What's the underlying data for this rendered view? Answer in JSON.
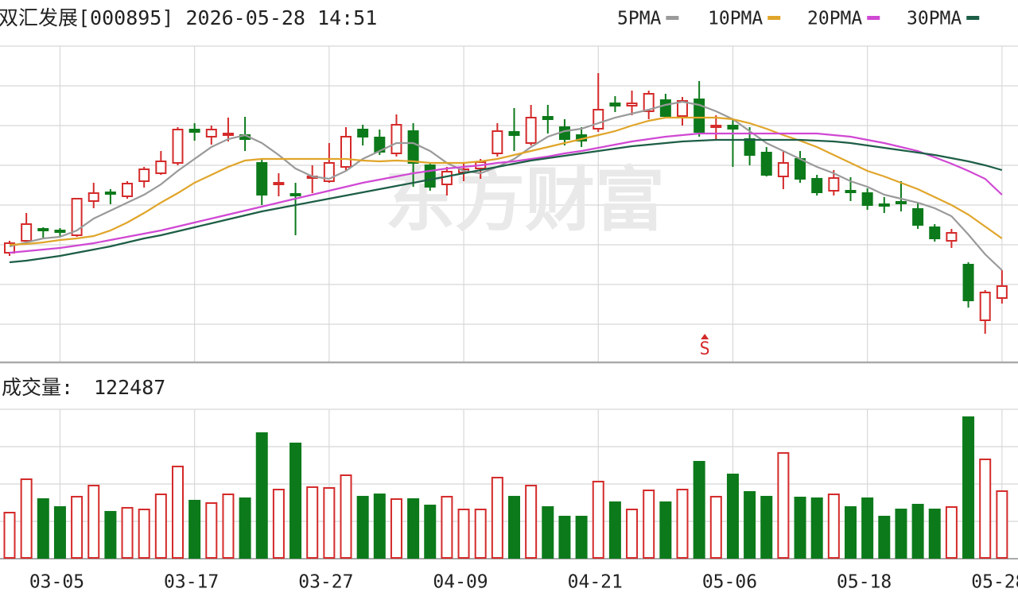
{
  "chart_data": {
    "type": "candlestick",
    "title": "双汇发展[000895] 2026-05-28 14:51",
    "watermark": "东方财富",
    "categories": [
      null,
      null,
      null,
      "03-05",
      null,
      null,
      null,
      null,
      null,
      null,
      null,
      "03-17",
      null,
      null,
      null,
      null,
      null,
      null,
      null,
      "03-27",
      null,
      null,
      null,
      null,
      null,
      null,
      null,
      "04-09",
      null,
      null,
      null,
      null,
      null,
      null,
      null,
      "04-21",
      null,
      null,
      null,
      null,
      null,
      null,
      null,
      "05-06",
      null,
      null,
      null,
      null,
      null,
      null,
      null,
      "05-18",
      null,
      null,
      null,
      null,
      null,
      null,
      null,
      "05-28"
    ],
    "signal_labels": [
      null,
      null,
      null,
      null,
      null,
      null,
      null,
      null,
      null,
      null,
      null,
      null,
      null,
      null,
      null,
      null,
      null,
      null,
      null,
      null,
      null,
      null,
      null,
      null,
      null,
      null,
      null,
      null,
      null,
      null,
      null,
      null,
      null,
      null,
      null,
      null,
      null,
      null,
      null,
      null,
      null,
      "S",
      null,
      null,
      null,
      null,
      null,
      null,
      null,
      null,
      null,
      null,
      null,
      null,
      null,
      null,
      null,
      null,
      null,
      null
    ],
    "up_color": "#d42a2a",
    "down_color": "#0c7a1b",
    "ylim": [
      20.06,
      28
    ],
    "ohlc": {
      "open": [
        22.8,
        23.1,
        23.4,
        23.36,
        23.24,
        24.1,
        24.32,
        24.22,
        24.6,
        24.8,
        25.06,
        25.9,
        25.72,
        25.76,
        25.76,
        25.06,
        24.52,
        24.28,
        24.68,
        24.6,
        24.96,
        25.9,
        25.7,
        25.3,
        25.86,
        25.0,
        24.52,
        24.82,
        24.92,
        25.3,
        25.84,
        25.56,
        26.22,
        25.96,
        25.76,
        25.92,
        26.56,
        26.5,
        26.36,
        26.64,
        26.24,
        26.66,
        25.96,
        26.0,
        25.66,
        25.32,
        24.72,
        25.16,
        24.66,
        24.36,
        24.36,
        24.3,
        24.02,
        24.08,
        23.9,
        23.44,
        23.1,
        22.5,
        21.1,
        21.66
      ],
      "high": [
        23.1,
        23.8,
        23.44,
        23.42,
        24.16,
        24.56,
        24.4,
        24.6,
        24.96,
        25.36,
        25.96,
        26.06,
        26.0,
        26.2,
        26.22,
        25.16,
        24.8,
        24.56,
        25.0,
        25.56,
        25.96,
        26.02,
        25.9,
        26.28,
        26.06,
        25.06,
        24.96,
        25.06,
        25.16,
        26.06,
        26.44,
        26.52,
        26.52,
        26.16,
        25.96,
        27.32,
        26.74,
        26.88,
        26.88,
        26.8,
        26.72,
        27.12,
        26.26,
        26.16,
        25.96,
        25.46,
        25.36,
        25.36,
        24.76,
        24.88,
        24.7,
        24.42,
        24.2,
        24.6,
        24.04,
        23.52,
        23.4,
        22.56,
        21.86,
        22.36
      ],
      "low": [
        22.72,
        23.04,
        23.16,
        23.22,
        23.2,
        23.92,
        24.02,
        24.16,
        24.44,
        24.76,
        25.0,
        25.62,
        25.52,
        25.6,
        25.36,
        24.0,
        24.22,
        23.24,
        24.3,
        24.56,
        24.86,
        25.5,
        25.26,
        25.22,
        24.46,
        24.36,
        24.24,
        24.6,
        24.66,
        25.22,
        25.36,
        25.5,
        25.8,
        25.5,
        25.46,
        25.84,
        26.34,
        26.26,
        26.16,
        26.2,
        26.0,
        25.72,
        25.66,
        24.96,
        25.0,
        24.72,
        24.4,
        24.56,
        24.24,
        24.24,
        24.1,
        23.88,
        23.8,
        23.84,
        23.4,
        23.08,
        22.92,
        21.42,
        20.76,
        21.52
      ],
      "close": [
        23.04,
        23.52,
        23.36,
        23.32,
        24.16,
        24.3,
        24.28,
        24.54,
        24.9,
        25.1,
        25.9,
        25.84,
        25.9,
        25.8,
        25.66,
        24.26,
        24.56,
        24.24,
        24.72,
        25.06,
        25.72,
        25.72,
        25.34,
        26.02,
        25.06,
        24.46,
        24.84,
        24.9,
        25.08,
        25.86,
        25.76,
        26.2,
        26.16,
        25.66,
        25.62,
        26.4,
        26.5,
        26.56,
        26.8,
        26.24,
        26.62,
        25.84,
        26.0,
        25.92,
        25.26,
        24.76,
        25.06,
        24.66,
        24.32,
        24.68,
        24.32,
        24.0,
        23.98,
        24.04,
        23.5,
        23.16,
        23.3,
        21.6,
        21.8,
        21.96
      ]
    },
    "series": [
      {
        "name": "5PMA",
        "color": "#9a9a9a",
        "values": [
          22.96,
          23.06,
          23.16,
          23.2,
          23.36,
          23.66,
          23.86,
          24.06,
          24.26,
          24.52,
          24.86,
          25.16,
          25.46,
          25.66,
          25.76,
          25.56,
          25.26,
          24.92,
          24.72,
          24.66,
          24.86,
          25.16,
          25.36,
          25.56,
          25.56,
          25.36,
          25.06,
          24.86,
          24.8,
          24.96,
          25.16,
          25.46,
          25.72,
          25.86,
          25.92,
          26.06,
          26.2,
          26.3,
          26.4,
          26.52,
          26.6,
          26.52,
          26.36,
          26.16,
          25.86,
          25.56,
          25.36,
          25.16,
          24.96,
          24.8,
          24.6,
          24.46,
          24.26,
          24.16,
          24.06,
          23.92,
          23.72,
          23.26,
          22.76,
          22.36
        ]
      },
      {
        "name": "10PMA",
        "color": "#e0a52a",
        "values": [
          23.0,
          23.02,
          23.06,
          23.12,
          23.16,
          23.22,
          23.36,
          23.56,
          23.8,
          24.06,
          24.3,
          24.56,
          24.76,
          24.96,
          25.12,
          25.16,
          25.16,
          25.16,
          25.16,
          25.16,
          25.16,
          25.12,
          25.1,
          25.12,
          25.1,
          25.06,
          25.06,
          25.06,
          25.1,
          25.16,
          25.26,
          25.36,
          25.46,
          25.56,
          25.66,
          25.76,
          25.86,
          26.0,
          26.12,
          26.2,
          26.2,
          26.2,
          26.2,
          26.16,
          26.06,
          25.92,
          25.76,
          25.62,
          25.46,
          25.26,
          25.06,
          24.86,
          24.72,
          24.56,
          24.4,
          24.2,
          24.0,
          23.76,
          23.46,
          23.16
        ]
      },
      {
        "name": "20PMA",
        "color": "#d048d4",
        "values": [
          22.8,
          22.84,
          22.88,
          22.92,
          22.98,
          23.04,
          23.12,
          23.2,
          23.28,
          23.36,
          23.46,
          23.56,
          23.66,
          23.76,
          23.86,
          23.96,
          24.06,
          24.16,
          24.26,
          24.36,
          24.46,
          24.56,
          24.64,
          24.72,
          24.8,
          24.86,
          24.92,
          24.96,
          25.0,
          25.06,
          25.1,
          25.16,
          25.22,
          25.3,
          25.36,
          25.44,
          25.52,
          25.6,
          25.66,
          25.72,
          25.76,
          25.8,
          25.8,
          25.8,
          25.8,
          25.8,
          25.8,
          25.8,
          25.8,
          25.76,
          25.72,
          25.64,
          25.56,
          25.46,
          25.36,
          25.2,
          25.04,
          24.86,
          24.66,
          24.26
        ]
      },
      {
        "name": "30PMA",
        "color": "#1d5e46",
        "values": [
          22.56,
          22.6,
          22.66,
          22.72,
          22.8,
          22.88,
          22.96,
          23.06,
          23.16,
          23.24,
          23.34,
          23.44,
          23.54,
          23.64,
          23.74,
          23.84,
          23.92,
          24.0,
          24.08,
          24.16,
          24.24,
          24.32,
          24.4,
          24.48,
          24.56,
          24.64,
          24.72,
          24.8,
          24.88,
          24.96,
          25.04,
          25.12,
          25.18,
          25.24,
          25.3,
          25.36,
          25.42,
          25.48,
          25.52,
          25.56,
          25.6,
          25.62,
          25.64,
          25.64,
          25.64,
          25.64,
          25.64,
          25.64,
          25.62,
          25.6,
          25.56,
          25.5,
          25.44,
          25.38,
          25.32,
          25.26,
          25.18,
          25.1,
          25.0,
          24.88
        ]
      }
    ],
    "volume": {
      "label": "成交量:",
      "ylim": [
        0,
        272600
      ],
      "values": [
        83100,
        144300,
        107900,
        93300,
        112300,
        132700,
        84600,
        91900,
        88900,
        116600,
        167700,
        105000,
        100600,
        116600,
        109400,
        228900,
        125400,
        210000,
        129800,
        128300,
        151600,
        112300,
        116600,
        107900,
        107900,
        96200,
        112300,
        88900,
        88900,
        147300,
        112300,
        132700,
        93300,
        75800,
        75800,
        140000,
        102100,
        88900,
        123900,
        102100,
        125400,
        176400,
        112300,
        153100,
        121000,
        112300,
        192500,
        110800,
        109400,
        116600,
        93300,
        109400,
        75800,
        88900,
        97700,
        88900,
        93300,
        258100,
        180800,
        122487
      ]
    }
  }
}
